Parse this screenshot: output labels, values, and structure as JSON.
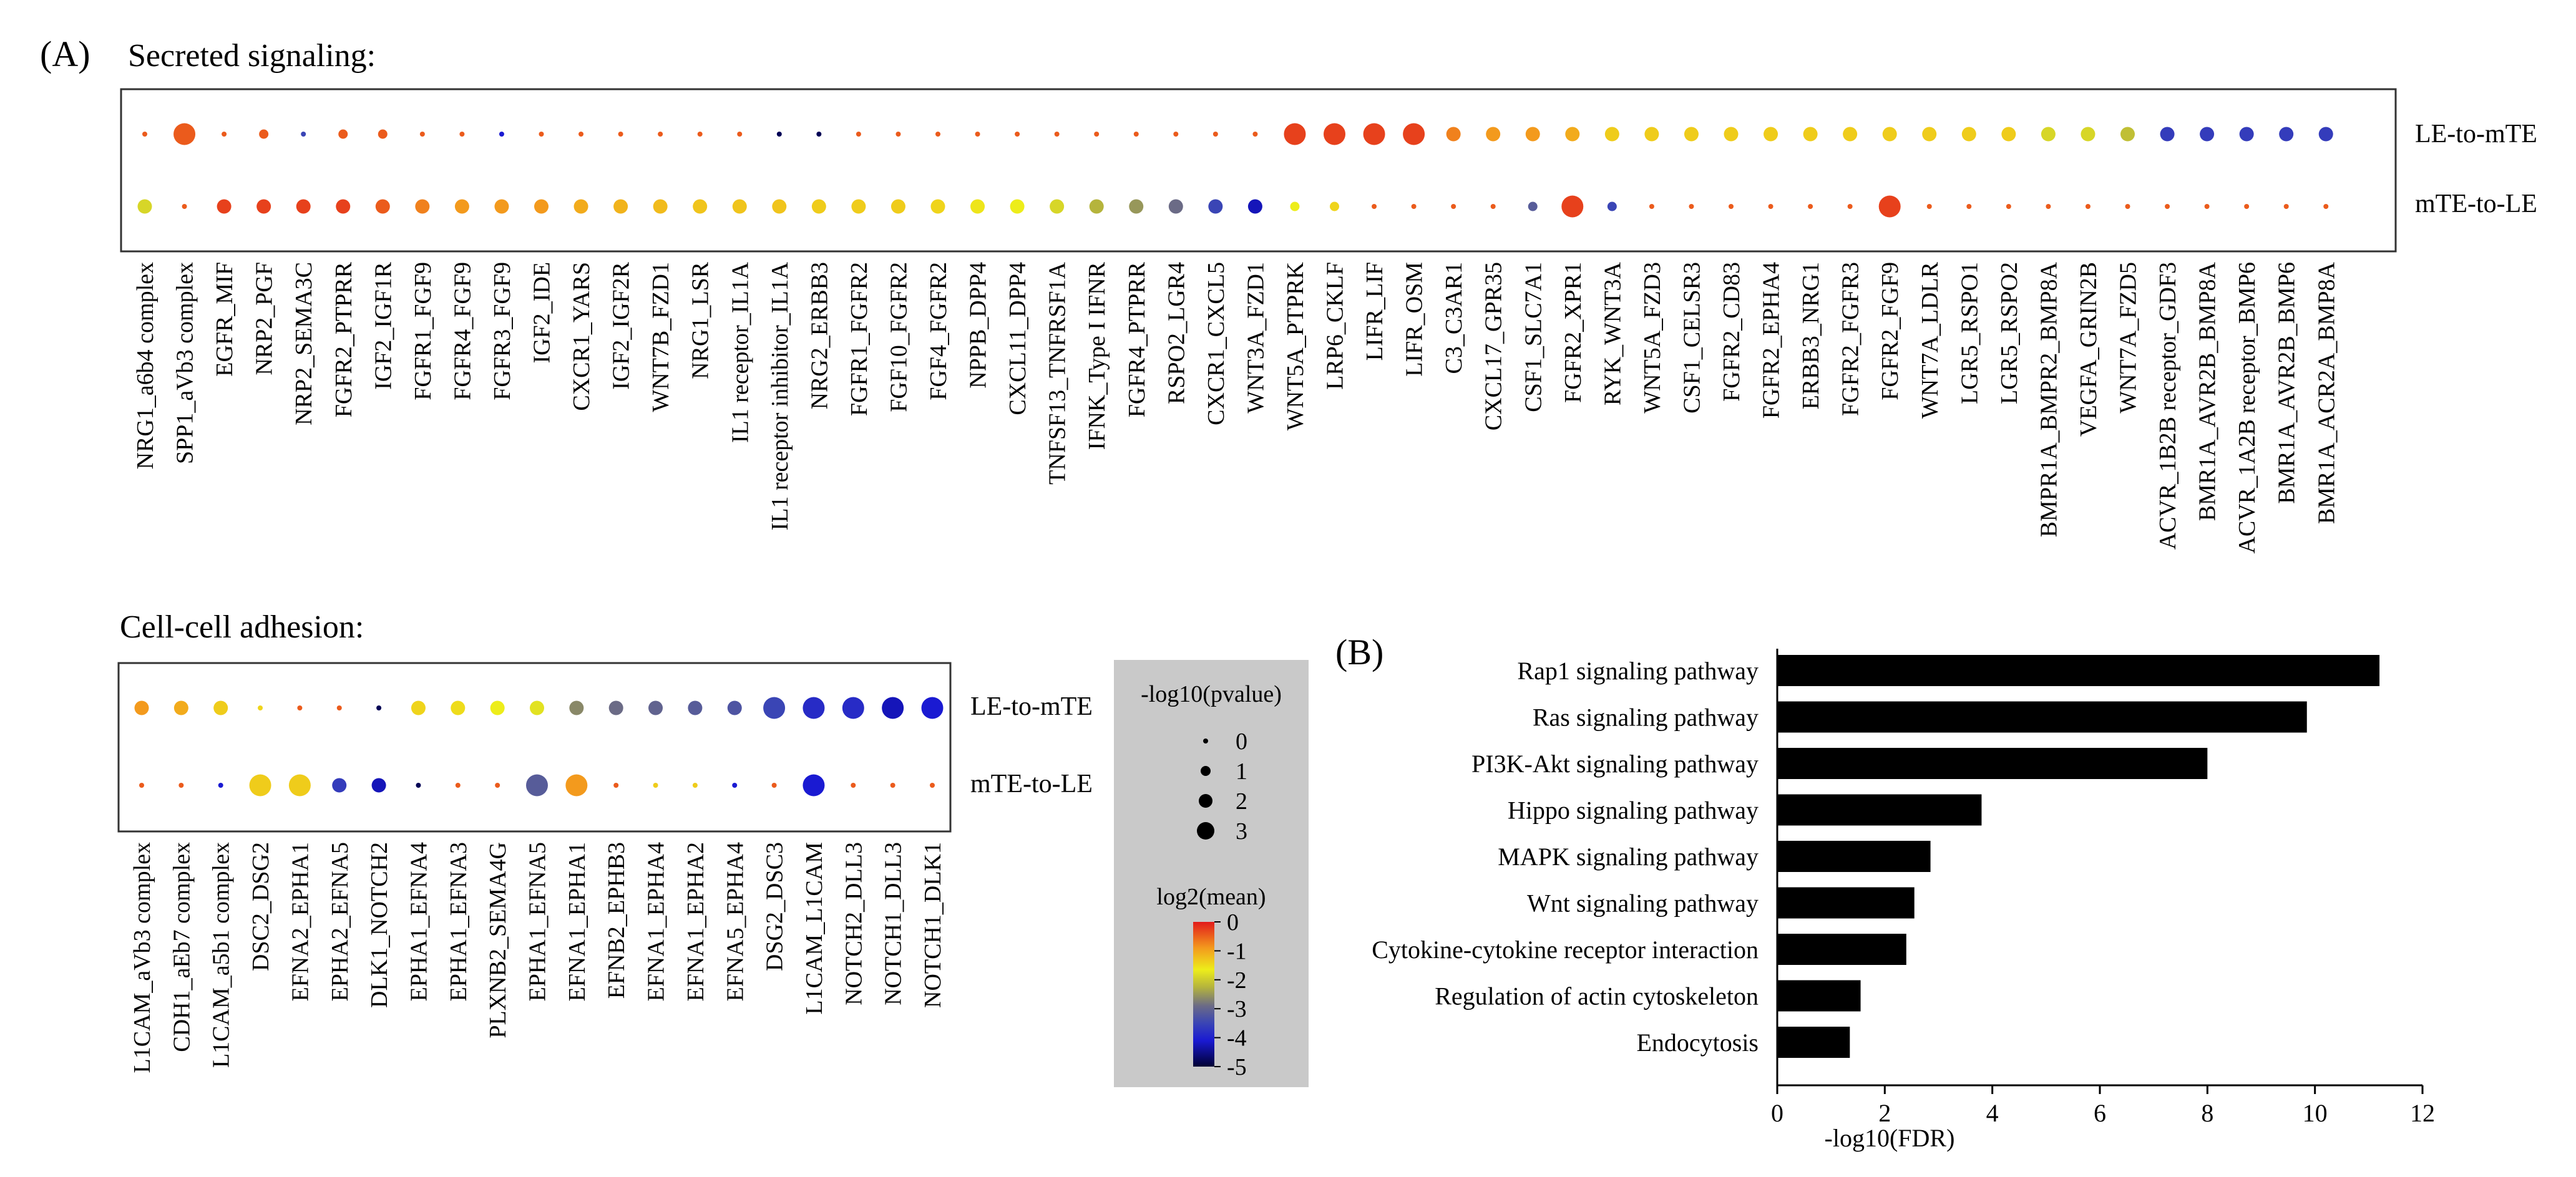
{
  "panel_a_label": "(A)",
  "panel_b_label": "(B)",
  "chart_data": [
    {
      "type": "scatter",
      "title": "Secreted signaling:",
      "rows": [
        "LE-to-mTE",
        "mTE-to-LE"
      ],
      "color_scale": "log2(mean)",
      "size_scale": "-log10(pvalue)",
      "categories": [
        "NRG1_a6b4 complex",
        "SPP1_aVb3 complex",
        "EGFR_MIF",
        "NRP2_PGF",
        "NRP2_SEMA3C",
        "FGFR2_PTPRR",
        "IGF2_IGF1R",
        "FGFR1_FGF9",
        "FGFR4_FGF9",
        "FGFR3_FGF9",
        "IGF2_IDE",
        "CXCR1_YARS",
        "IGF2_IGF2R",
        "WNT7B_FZD1",
        "NRG1_LSR",
        "IL1 receptor_IL1A",
        "IL1 receptor inhibitor_IL1A",
        "NRG2_ERBB3",
        "FGFR1_FGFR2",
        "FGF10_FGFR2",
        "FGF4_FGFR2",
        "NPPB_DPP4",
        "CXCL11_DPP4",
        "TNFSF13_TNFRSF1A",
        "IFNK_Type I IFNR",
        "FGFR4_PTPRR",
        "RSPO2_LGR4",
        "CXCR1_CXCL5",
        "WNT3A_FZD1",
        "WNT5A_PTPRK",
        "LRP6_CKLF",
        "LIFR_LIF",
        "LIFR_OSM",
        "C3_C3AR1",
        "CXCL17_GPR35",
        "CSF1_SLC7A1",
        "FGFR2_XPR1",
        "RYK_WNT3A",
        "WNT5A_FZD3",
        "CSF1_CELSR3",
        "FGFR2_CD83",
        "FGFR2_EPHA4",
        "ERBB3_NRG1",
        "FGFR2_FGFR3",
        "FGFR2_FGF9",
        "WNT7A_LDLR",
        "LGR5_RSPO1",
        "LGR5_RSPO2",
        "BMPR1A_BMPR2_BMP8A",
        "VEGFA_GRIN2B",
        "WNT7A_FZD5",
        "ACVR_1B2B receptor_GDF3",
        "BMR1A_AVR2B_BMP8A",
        "ACVR_1A2B receptor_BMP6",
        "BMR1A_AVR2B_BMP6",
        "BMR1A_ACR2A_BMP8A"
      ],
      "series": [
        {
          "name": "LE-to-mTE",
          "log2_mean": [
            -0.5,
            -0.5,
            -0.5,
            -0.5,
            -3.5,
            -0.5,
            -0.5,
            -0.5,
            -0.5,
            -4,
            -0.5,
            -0.5,
            -0.5,
            -0.5,
            -0.5,
            -0.5,
            -5,
            -5,
            -0.5,
            -0.5,
            -0.5,
            -0.5,
            -0.5,
            -0.5,
            -0.5,
            -0.5,
            -0.5,
            -0.5,
            -0.5,
            -0.3,
            -0.3,
            -0.3,
            -0.3,
            -0.8,
            -1.0,
            -1.0,
            -1.2,
            -1.6,
            -1.6,
            -1.6,
            -1.6,
            -1.6,
            -1.6,
            -1.6,
            -1.6,
            -1.6,
            -1.6,
            -1.6,
            -2.2,
            -2.2,
            -2.4,
            -3.6,
            -3.6,
            -3.6,
            -3.6,
            -3.6
          ],
          "neg_log10_pvalue": [
            0,
            2.5,
            0,
            1,
            0,
            1,
            1,
            0,
            0,
            0,
            0,
            0,
            0,
            0,
            0,
            0,
            0,
            0,
            0,
            0,
            0,
            0,
            0,
            0,
            0,
            0,
            0,
            0,
            0,
            2.5,
            2.5,
            2.5,
            2.5,
            2,
            2,
            2,
            2,
            2,
            2,
            2,
            2,
            2,
            2,
            2,
            2,
            2,
            2,
            2,
            2,
            2,
            2,
            2,
            2,
            2,
            2,
            2
          ]
        },
        {
          "name": "mTE-to-LE",
          "log2_mean": [
            -2.2,
            -0.5,
            -0.3,
            -0.3,
            -0.3,
            -0.3,
            -0.5,
            -0.8,
            -1.0,
            -1.0,
            -1.0,
            -1.2,
            -1.3,
            -1.4,
            -1.5,
            -1.5,
            -1.5,
            -1.6,
            -1.6,
            -1.6,
            -1.7,
            -1.9,
            -2.0,
            -2.2,
            -2.5,
            -2.7,
            -3.0,
            -3.5,
            -4.2,
            -2.0,
            -1.7,
            -0.5,
            -0.5,
            -0.5,
            -0.5,
            -3.2,
            -0.3,
            -3.5,
            -0.5,
            -0.5,
            -0.5,
            -0.5,
            -0.5,
            -0.5,
            -0.3,
            -0.5,
            -0.5,
            -0.5,
            -0.5,
            -0.5,
            -0.5,
            -0.5,
            -0.5,
            -0.5,
            -0.5,
            -0.5
          ],
          "neg_log10_pvalue": [
            2,
            0,
            2,
            2,
            2,
            2,
            2,
            2,
            2,
            2,
            2,
            2,
            2,
            2,
            2,
            2,
            2,
            2,
            2,
            2,
            2,
            2,
            2,
            2,
            2,
            2,
            2,
            2,
            2,
            1,
            1,
            0,
            0,
            0,
            0,
            1,
            2.5,
            1,
            0,
            0,
            0,
            0,
            0,
            0,
            2.5,
            0,
            0,
            0,
            0,
            0,
            0,
            0,
            0,
            0,
            0,
            0
          ]
        }
      ]
    },
    {
      "type": "scatter",
      "title": "Cell-cell adhesion:",
      "rows": [
        "LE-to-mTE",
        "mTE-to-LE"
      ],
      "categories": [
        "L1CAM_aVb3 complex",
        "CDH1_aEb7 complex",
        "L1CAM_a5b1 complex",
        "DSC2_DSG2",
        "EFNA2_EPHA1",
        "EPHA2_EFNA5",
        "DLK1_NOTCH2",
        "EPHA1_EFNA4",
        "EPHA1_EFNA3",
        "PLXNB2_SEMA4G",
        "EPHA1_EFNA5",
        "EFNA1_EPHA1",
        "EFNB2_EPHB3",
        "EFNA1_EPHA4",
        "EFNA1_EPHA2",
        "EFNA5_EPHA4",
        "DSG2_DSC3",
        "L1CAM_L1CAM",
        "NOTCH2_DLL3",
        "NOTCH1_DLL3",
        "NOTCH1_DLK1"
      ],
      "series": [
        {
          "name": "LE-to-mTE",
          "log2_mean": [
            -1.0,
            -1.2,
            -1.6,
            -1.7,
            -0.5,
            -0.5,
            -5,
            -1.7,
            -1.8,
            -2.0,
            -2.1,
            -2.8,
            -3.0,
            -3.1,
            -3.2,
            -3.3,
            -3.5,
            -3.8,
            -3.8,
            -4.2,
            -4.0
          ],
          "neg_log10_pvalue": [
            2,
            2,
            2,
            0,
            0,
            0,
            0,
            2,
            2,
            2,
            2,
            2,
            2,
            2,
            2,
            2,
            2.5,
            2.5,
            2.5,
            2.5,
            2.5
          ]
        },
        {
          "name": "mTE-to-LE",
          "log2_mean": [
            -0.5,
            -0.5,
            -4,
            -1.6,
            -1.6,
            -3.6,
            -4.2,
            -5,
            -0.5,
            -0.5,
            -3.2,
            -1.0,
            -0.5,
            -1.6,
            -1.6,
            -4,
            -0.5,
            -4,
            -0.5,
            -0.5,
            -0.5
          ],
          "neg_log10_pvalue": [
            0,
            0,
            0,
            2.5,
            2.5,
            2,
            2,
            0,
            0,
            0,
            2.5,
            2.5,
            0,
            0,
            0,
            0,
            0,
            2.5,
            0,
            0,
            0
          ]
        }
      ]
    },
    {
      "type": "bar",
      "orientation": "horizontal",
      "categories": [
        "Rap1 signaling pathway",
        "Ras signaling pathway",
        "PI3K-Akt signaling pathway",
        "Hippo signaling pathway",
        "MAPK signaling pathway",
        "Wnt signaling pathway",
        "Cytokine-cytokine receptor interaction",
        "Regulation of actin cytoskeleton",
        "Endocytosis"
      ],
      "values": [
        11.2,
        9.85,
        8.0,
        3.8,
        2.85,
        2.55,
        2.4,
        1.55,
        1.35
      ],
      "xlabel": "-log10(FDR)",
      "xlim": [
        0,
        12
      ],
      "xticks": [
        0,
        2,
        4,
        6,
        8,
        10,
        12
      ]
    }
  ],
  "legend": {
    "size_title": "-log10(pvalue)",
    "size_levels": [
      0,
      1,
      2,
      3
    ],
    "color_title": "log2(mean)",
    "color_ticks": [
      0,
      -1,
      -2,
      -3,
      -4,
      -5
    ],
    "colors": [
      "#e21b1b",
      "#f39a1d",
      "#eded1a",
      "#b5b43c",
      "#6b6b86",
      "#3a45b5",
      "#1a1ad2",
      "#000055"
    ],
    "background": "#c9c9c9"
  }
}
